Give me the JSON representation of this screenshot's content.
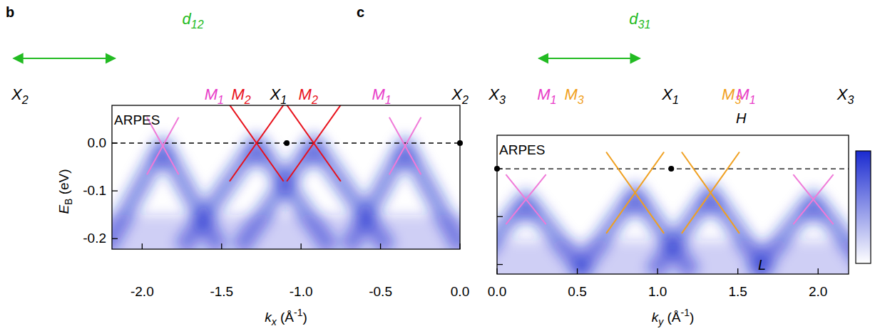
{
  "chart_data": [
    {
      "panel_label": "b",
      "type": "arpes",
      "annotation": "ARPES",
      "x_label": {
        "symbol": "k",
        "subscript": "x",
        "unit": " (Å",
        "superscript": "-1",
        "close": ")"
      },
      "y_label": {
        "symbol": "E",
        "subscript": "B",
        "unit": " (eV)"
      },
      "xlim": [
        -2.19,
        0
      ],
      "ylim": [
        -0.222,
        0.079
      ],
      "xticks": [
        {
          "value": -2,
          "label": "-2.0"
        },
        -1.5,
        {
          "value": -1,
          "label": "-1.0"
        },
        -0.5,
        {
          "value": 0,
          "label": "0.0"
        }
      ],
      "yticks": [
        {
          "value": 0,
          "label": "0.0"
        },
        -0.1,
        -0.2
      ],
      "dashed_line_E": 0,
      "bands": [
        {
          "color": "#f07ad8",
          "k": -1.87,
          "E": -0.006,
          "dk": 0.1,
          "dE": 0.06
        },
        {
          "color": "#e8101a",
          "k": -1.28,
          "E": 0,
          "dk": 0.17,
          "dE": 0.08
        },
        {
          "color": "#e8101a",
          "k": -0.92,
          "E": 0,
          "dk": 0.17,
          "dE": 0.08
        },
        {
          "color": "#f07ad8",
          "k": -0.345,
          "E": -0.006,
          "dk": 0.1,
          "dE": 0.06
        }
      ],
      "points_k": [
        -1.09,
        0
      ],
      "points_E": [
        0,
        0
      ],
      "high_symmetry_labels": [
        {
          "letter": "X",
          "sub": "2",
          "k": -2.77,
          "color": "#000000"
        },
        {
          "letter": "M",
          "sub": "1",
          "k": -1.547,
          "color": "#e83cc8"
        },
        {
          "letter": "M",
          "sub": "2",
          "k": -1.377,
          "color": "#e8101a"
        },
        {
          "letter": "X",
          "sub": "1",
          "k": -1.143,
          "color": "#000000"
        },
        {
          "letter": "M",
          "sub": "2",
          "k": -0.955,
          "color": "#e8101a"
        },
        {
          "letter": "M",
          "sub": "1",
          "k": -0.493,
          "color": "#e83cc8"
        },
        {
          "letter": "X",
          "sub": "2",
          "k": 0,
          "color": "#000000"
        }
      ],
      "arrow": {
        "letter": "d",
        "sub": "12",
        "label_k": -1.68,
        "k": [
          -2.81,
          -2.17
        ],
        "color": "#22bb22"
      },
      "colormap": [
        "#ffffff",
        "#1a2ad0"
      ]
    },
    {
      "panel_label": "c",
      "type": "arpes",
      "annotation": "ARPES",
      "x_label": {
        "symbol": "k",
        "subscript": "y",
        "unit": " (Å",
        "superscript": "-1",
        "close": ")"
      },
      "xlim": [
        0,
        2.19
      ],
      "ylim": [
        -0.22,
        0.07
      ],
      "xticks": [
        {
          "value": 0,
          "label": "0.0"
        },
        0.5,
        {
          "value": 1,
          "label": "1.0"
        },
        1.5,
        {
          "value": 2,
          "label": "2.0"
        }
      ],
      "yticks": [
        0,
        -0.1,
        -0.2
      ],
      "tick_labels": "x",
      "dashed_line_E": 0,
      "bands": [
        {
          "color": "#f07ad8",
          "k": 0.18,
          "E": -0.064,
          "dk": 0.125,
          "dE": 0.052
        },
        {
          "color": "#f0a020",
          "k": 0.86,
          "E": -0.05,
          "dk": 0.18,
          "dE": 0.085
        },
        {
          "color": "#f0a020",
          "k": 1.33,
          "E": -0.05,
          "dk": 0.18,
          "dE": 0.085
        },
        {
          "color": "#f07ad8",
          "k": 1.97,
          "E": -0.064,
          "dk": 0.125,
          "dE": 0.052
        }
      ],
      "points_k": [
        0,
        1.085
      ],
      "points_E": [
        0,
        0
      ],
      "high_symmetry_labels": [
        {
          "letter": "X",
          "sub": "3",
          "k": 0,
          "color": "#000000"
        },
        {
          "letter": "M",
          "sub": "1",
          "k": 0.31,
          "color": "#e83cc8"
        },
        {
          "letter": "M",
          "sub": "3",
          "k": 0.48,
          "color": "#f0a020"
        },
        {
          "letter": "X",
          "sub": "1",
          "k": 1.08,
          "color": "#000000"
        },
        {
          "letter": "M",
          "sub": "3",
          "k": 1.46,
          "color": "#f0a020"
        },
        {
          "letter": "M",
          "sub": "1",
          "k": 1.55,
          "color": "#e83cc8"
        },
        {
          "letter": "X",
          "sub": "3",
          "k": 2.17,
          "color": "#000000"
        }
      ],
      "annotations": [
        {
          "text": "H",
          "k": 1.52,
          "E": 0.105
        },
        {
          "text": "L",
          "k": 1.65,
          "E": -0.2
        }
      ],
      "arrow": {
        "letter": "d",
        "sub": "31",
        "label_k": 0.89,
        "k": [
          0.26,
          0.89
        ],
        "color": "#22bb22"
      },
      "colormap": [
        "#ffffff",
        "#1a2ad0"
      ],
      "colorbar": {
        "colors": [
          "#ffffff",
          "#1a2ad0"
        ]
      }
    }
  ]
}
